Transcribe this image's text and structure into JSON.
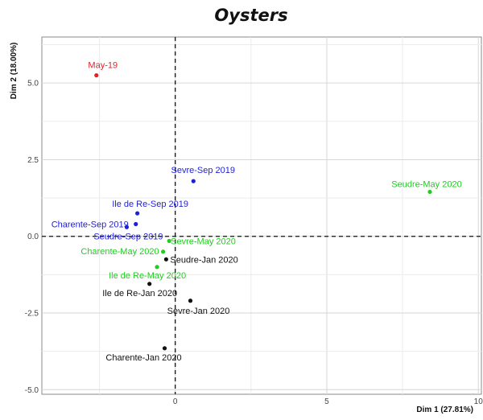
{
  "chart_data": {
    "type": "scatter",
    "title": "Oysters",
    "xlabel": "Dim 1 (27.81%)",
    "ylabel": "Dim 2 (18.00%)",
    "xlim": [
      -4.4,
      10.1
    ],
    "ylim": [
      -5.15,
      6.5
    ],
    "x_ticks": [
      0,
      5,
      10
    ],
    "y_ticks": [
      -5.0,
      -2.5,
      0.0,
      2.5,
      5.0
    ],
    "x_tick_labels": [
      "0",
      "5",
      "10"
    ],
    "y_tick_labels": [
      "-5.0",
      "-2.5",
      "0.0",
      "2.5",
      "5.0"
    ],
    "grid": true,
    "reference_lines": [
      "x = 0 (dashed)",
      "y = 0 (dashed)"
    ],
    "colors": {
      "red": "#ee1c24",
      "blue": "#1f1fd6",
      "green": "#22cc22",
      "black": "#111111"
    },
    "points": [
      {
        "label": "May-19",
        "x": -2.6,
        "y": 5.25,
        "color": "red"
      },
      {
        "label": "Sevre-Sep 2019",
        "x": 0.6,
        "y": 1.8,
        "color": "blue"
      },
      {
        "label": "Ile de Re-Sep 2019",
        "x": -1.25,
        "y": 0.75,
        "color": "blue"
      },
      {
        "label": "Charente-Sep 2019",
        "x": -1.3,
        "y": 0.4,
        "color": "blue"
      },
      {
        "label": "Seudre-Sep 2019",
        "x": -1.6,
        "y": 0.3,
        "color": "blue"
      },
      {
        "label": "Seudre-May 2020",
        "x": 8.4,
        "y": 1.45,
        "color": "green"
      },
      {
        "label": "Sevre-May 2020",
        "x": -0.2,
        "y": -0.15,
        "color": "green"
      },
      {
        "label": "Charente-May 2020",
        "x": -0.4,
        "y": -0.5,
        "color": "green"
      },
      {
        "label": "Ile de Re-May 2020",
        "x": -0.6,
        "y": -1.0,
        "color": "green"
      },
      {
        "label": "Seudre-Jan 2020",
        "x": -0.3,
        "y": -0.75,
        "color": "black"
      },
      {
        "label": "Ile de Re-Jan 2020",
        "x": -0.85,
        "y": -1.55,
        "color": "black"
      },
      {
        "label": "Sevre-Jan 2020",
        "x": 0.5,
        "y": -2.1,
        "color": "black"
      },
      {
        "label": "Charente-Jan 2020",
        "x": -0.35,
        "y": -3.65,
        "color": "black"
      }
    ]
  }
}
